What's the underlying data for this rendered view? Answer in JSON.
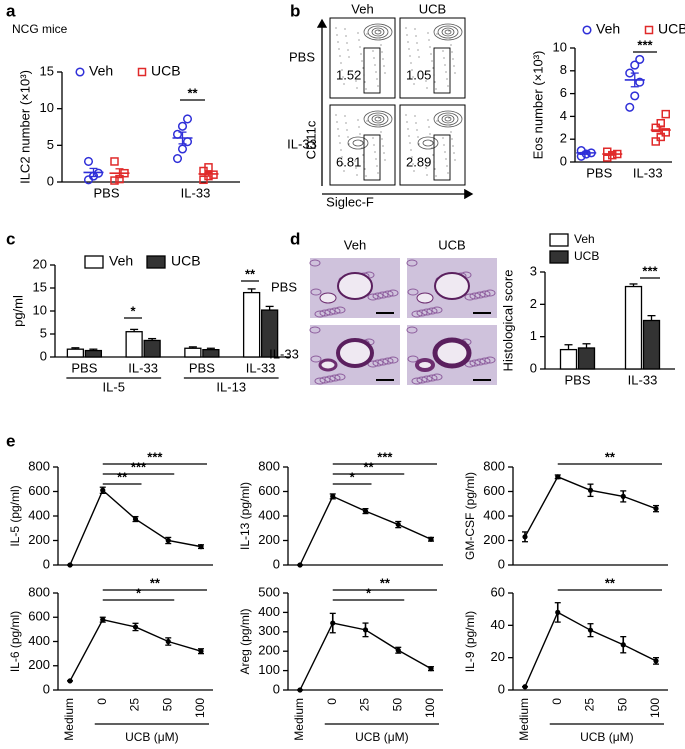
{
  "chart_data": [
    {
      "panel": "a",
      "type": "dot",
      "title": "NCG mice",
      "ylabel": "ILC2 number (×10³)",
      "categories": [
        "PBS",
        "IL-33"
      ],
      "ylim": [
        0,
        15
      ],
      "yticks": [
        0,
        5,
        10,
        15
      ],
      "legend": "row",
      "series": [
        {
          "name": "Veh",
          "color": "#2f2fd8",
          "marker": "circle",
          "values": [
            [
              0.3,
              0.8,
              1.2,
              2.8
            ],
            [
              3.2,
              4.5,
              5.5,
              6.5,
              7.6,
              8.6
            ]
          ],
          "means": [
            1.3,
            6.0
          ],
          "errors": [
            0.55,
            0.8
          ]
        },
        {
          "name": "UCB",
          "color": "#e02a2a",
          "marker": "square",
          "values": [
            [
              0.2,
              0.4,
              1.2,
              2.8
            ],
            [
              0.3,
              0.8,
              1.0,
              1.5,
              2.0
            ]
          ],
          "means": [
            1.2,
            1.1
          ],
          "errors": [
            0.6,
            0.3
          ]
        }
      ],
      "significance": [
        "**"
      ]
    },
    {
      "type": "dot",
      "ylabel": "Eos number (×10³)",
      "categories": [
        "PBS",
        "IL-33"
      ],
      "ylim": [
        0,
        10
      ],
      "yticks": [
        0,
        2,
        4,
        6,
        8,
        10
      ],
      "legend": "row",
      "series": [
        {
          "name": "Veh",
          "color": "#2f2fd8",
          "marker": "circle",
          "values": [
            [
              0.5,
              0.7,
              0.8,
              1.0
            ],
            [
              4.8,
              5.8,
              7.0,
              7.8,
              8.5,
              9.0
            ]
          ],
          "means": [
            0.8,
            7.2
          ],
          "errors": [
            0.12,
            0.6
          ]
        },
        {
          "name": "UCB",
          "color": "#e02a2a",
          "marker": "square",
          "values": [
            [
              0.4,
              0.6,
              0.7,
              0.9
            ],
            [
              1.8,
              2.2,
              2.6,
              3.0,
              3.4,
              4.2
            ]
          ],
          "means": [
            0.7,
            2.8
          ],
          "errors": [
            0.1,
            0.35
          ]
        }
      ],
      "significance": [
        "***"
      ]
    },
    {
      "panel": "c",
      "type": "bar",
      "ylabel": "pg/ml",
      "categories": [
        "PBS",
        "IL-33",
        "PBS",
        "IL-33"
      ],
      "groups": [
        "IL-5",
        "IL-13"
      ],
      "ylim": [
        0,
        20
      ],
      "yticks": [
        0,
        5,
        10,
        15,
        20
      ],
      "legend": "row",
      "series": [
        {
          "name": "Veh",
          "color": "#ffffff",
          "values": [
            1.7,
            5.5,
            1.9,
            14.0
          ],
          "errors": [
            0.3,
            0.5,
            0.3,
            0.8
          ]
        },
        {
          "name": "UCB",
          "color": "#333333",
          "values": [
            1.4,
            3.6,
            1.6,
            10.2
          ],
          "errors": [
            0.3,
            0.4,
            0.3,
            0.8
          ]
        }
      ],
      "significance": [
        "*",
        "**"
      ]
    },
    {
      "type": "bar",
      "ylabel": "Histological score",
      "categories": [
        "PBS",
        "IL-33"
      ],
      "ylim": [
        0,
        3
      ],
      "yticks": [
        0,
        1,
        2,
        3
      ],
      "legend": "column",
      "series": [
        {
          "name": "Veh",
          "color": "#ffffff",
          "values": [
            0.6,
            2.55
          ],
          "errors": [
            0.15,
            0.08
          ]
        },
        {
          "name": "UCB",
          "color": "#333333",
          "values": [
            0.65,
            1.5
          ],
          "errors": [
            0.13,
            0.15
          ]
        }
      ],
      "significance": [
        "***"
      ]
    },
    {
      "panel": "e",
      "type": "line",
      "ylabel": "IL-5 (pg/ml)",
      "categories": [
        null,
        null,
        null,
        null,
        null
      ],
      "ylim": [
        0,
        800
      ],
      "yticks": [
        0,
        200,
        400,
        600,
        800
      ],
      "color": "#000000",
      "values": [
        0,
        610,
        375,
        200,
        150
      ],
      "errors": [
        0,
        25,
        20,
        25,
        15
      ],
      "significance": [
        "***",
        "***",
        "**"
      ]
    },
    {
      "type": "line",
      "ylabel": "IL-13 (pg/ml)",
      "categories": [
        null,
        null,
        null,
        null,
        null
      ],
      "ylim": [
        0,
        800
      ],
      "yticks": [
        0,
        200,
        400,
        600,
        800
      ],
      "color": "#000000",
      "values": [
        0,
        560,
        440,
        330,
        210
      ],
      "errors": [
        0,
        20,
        20,
        25,
        15
      ],
      "significance": [
        "***",
        "**",
        "*"
      ]
    },
    {
      "type": "line",
      "ylabel": "GM-CSF (pg/ml)",
      "categories": [
        null,
        null,
        null,
        null,
        null
      ],
      "ylim": [
        0,
        800
      ],
      "yticks": [
        0,
        200,
        400,
        600,
        800
      ],
      "color": "#000000",
      "values": [
        230,
        720,
        610,
        560,
        460
      ],
      "errors": [
        40,
        15,
        50,
        45,
        25
      ],
      "significance": [
        "**"
      ]
    },
    {
      "type": "line",
      "ylabel": "IL-6 (pg/ml)",
      "xlabel": "UCB (μM)",
      "categories": [
        "Medium",
        "0",
        "25",
        "50",
        "100"
      ],
      "ylim": [
        0,
        800
      ],
      "yticks": [
        0,
        200,
        400,
        600,
        800
      ],
      "color": "#000000",
      "values": [
        75,
        580,
        520,
        400,
        320
      ],
      "errors": [
        0,
        20,
        30,
        30,
        20
      ],
      "significance": [
        "**",
        "*"
      ]
    },
    {
      "type": "line",
      "ylabel": "Areg (pg/ml)",
      "xlabel": "UCB (μM)",
      "categories": [
        "Medium",
        "0",
        "25",
        "50",
        "100"
      ],
      "ylim": [
        0,
        500
      ],
      "yticks": [
        0,
        100,
        200,
        300,
        400,
        500
      ],
      "color": "#000000",
      "values": [
        0,
        345,
        310,
        205,
        110
      ],
      "errors": [
        0,
        50,
        35,
        15,
        10
      ],
      "significance": [
        "**",
        "*"
      ]
    },
    {
      "type": "line",
      "ylabel": "IL-9 (pg/ml)",
      "xlabel": "UCB (μM)",
      "categories": [
        "Medium",
        "0",
        "25",
        "50",
        "100"
      ],
      "ylim": [
        0,
        60
      ],
      "yticks": [
        0,
        20,
        40,
        60
      ],
      "color": "#000000",
      "values": [
        2,
        48,
        37,
        28,
        18
      ],
      "errors": [
        0,
        6,
        4,
        5,
        2
      ],
      "significance": [
        "**"
      ]
    }
  ],
  "flow_panel": {
    "panel": "b",
    "columns": [
      "Veh",
      "UCB"
    ],
    "rows": [
      "PBS",
      "IL-33"
    ],
    "percentages": [
      [
        1.52,
        1.05
      ],
      [
        6.81,
        2.89
      ]
    ],
    "ylabel": "CD11c",
    "xlabel": "Siglec-F"
  },
  "histology_panel": {
    "panel": "d",
    "columns": [
      "Veh",
      "UCB"
    ],
    "rows": [
      "PBS",
      "IL-33"
    ]
  }
}
